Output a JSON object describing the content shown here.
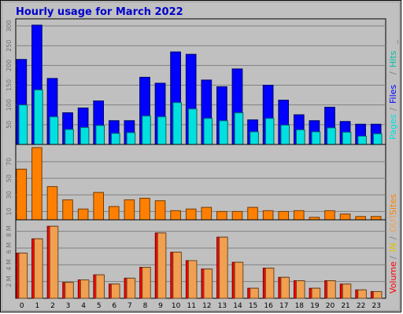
{
  "title": "Hourly usage for March 2022",
  "colors": {
    "background": "#ffffff",
    "plot_bg": "#c0c0c0",
    "grid": "#808080",
    "title": "#0000cc",
    "pages": "#00e0e0",
    "files": "#0000ff",
    "hits": "#00c0a0",
    "sites": "#ff8000",
    "volume": "#ff0000",
    "kbin": "#f0a050",
    "kbout": "#e0c000"
  },
  "chart_data": [
    {
      "type": "bar",
      "panel": "top",
      "categories": [
        "0",
        "1",
        "2",
        "3",
        "4",
        "5",
        "6",
        "7",
        "8",
        "9",
        "10",
        "11",
        "12",
        "13",
        "14",
        "15",
        "16",
        "17",
        "18",
        "19",
        "20",
        "21",
        "22",
        "23"
      ],
      "ylim": [
        0,
        310
      ],
      "yticks": [
        "50",
        "100",
        "150",
        "200",
        "250",
        "300"
      ],
      "grid": true,
      "legend": {
        "placement": "right-vertical",
        "items": [
          {
            "name": "Pages",
            "color_key": "pages"
          },
          {
            "name": "/",
            "color_key": "grid"
          },
          {
            "name": "Files",
            "color_key": "files"
          },
          {
            "name": "/",
            "color_key": "grid"
          },
          {
            "name": "Hits",
            "color_key": "hits"
          },
          {
            "name": "_",
            "color_key": "grid"
          }
        ]
      },
      "series": [
        {
          "name": "Hits",
          "color_key": "hits",
          "values": [
            215,
            302,
            167,
            80,
            92,
            110,
            60,
            60,
            170,
            155,
            234,
            228,
            163,
            146,
            191,
            62,
            150,
            112,
            75,
            60,
            94,
            58,
            51,
            51
          ]
        },
        {
          "name": "Files",
          "color_key": "files",
          "values": [
            215,
            302,
            167,
            80,
            92,
            110,
            60,
            60,
            170,
            155,
            234,
            228,
            163,
            146,
            191,
            62,
            150,
            112,
            75,
            60,
            94,
            58,
            51,
            51
          ]
        },
        {
          "name": "Pages",
          "color_key": "pages",
          "values": [
            100,
            138,
            70,
            38,
            43,
            48,
            28,
            30,
            72,
            70,
            106,
            90,
            66,
            60,
            80,
            32,
            66,
            49,
            37,
            32,
            42,
            31,
            21,
            27
          ]
        }
      ]
    },
    {
      "type": "bar",
      "panel": "middle",
      "categories": [
        "0",
        "1",
        "2",
        "3",
        "4",
        "5",
        "6",
        "7",
        "8",
        "9",
        "10",
        "11",
        "12",
        "13",
        "14",
        "15",
        "16",
        "17",
        "18",
        "19",
        "20",
        "21",
        "22",
        "23"
      ],
      "ylim": [
        0,
        87
      ],
      "yticks": [
        "10",
        "30",
        "50",
        "70"
      ],
      "grid": true,
      "legend": {
        "placement": "right-vertical",
        "items": [
          {
            "name": "Sites",
            "color_key": "sites"
          }
        ]
      },
      "series": [
        {
          "name": "Sites",
          "color_key": "sites",
          "values": [
            61,
            87,
            40,
            24,
            13,
            33,
            16,
            24,
            26,
            23,
            11,
            13,
            15,
            10,
            10,
            15,
            11,
            10,
            11,
            3,
            11,
            7,
            4,
            4
          ]
        }
      ]
    },
    {
      "type": "bar",
      "panel": "bottom",
      "categories": [
        "0",
        "1",
        "2",
        "3",
        "4",
        "5",
        "6",
        "7",
        "8",
        "9",
        "10",
        "11",
        "12",
        "13",
        "14",
        "15",
        "16",
        "17",
        "18",
        "19",
        "20",
        "21",
        "22",
        "23"
      ],
      "ylim": [
        0,
        9
      ],
      "yticks": [
        "2 M",
        "4 M",
        "6 M",
        "8 M"
      ],
      "grid": true,
      "legend": {
        "placement": "right-vertical",
        "items": [
          {
            "name": "Volume",
            "color_key": "volume"
          },
          {
            "name": "/",
            "color_key": "grid"
          },
          {
            "name": "IN",
            "color_key": "kbout"
          },
          {
            "name": "/",
            "color_key": "grid"
          },
          {
            "name": "OUT",
            "color_key": "kbin"
          }
        ]
      },
      "series": [
        {
          "name": "Volume",
          "color_key": "volume",
          "values": [
            5.4,
            7.1,
            8.6,
            1.9,
            2.2,
            2.8,
            1.7,
            2.4,
            3.7,
            7.8,
            5.5,
            4.5,
            3.5,
            7.3,
            4.3,
            1.2,
            3.6,
            2.5,
            2.1,
            1.2,
            2.1,
            1.7,
            1.0,
            0.8
          ]
        },
        {
          "name": "OUT",
          "color_key": "kbin",
          "values": [
            5.4,
            7.1,
            8.6,
            1.9,
            2.2,
            2.8,
            1.7,
            2.4,
            3.7,
            7.8,
            5.5,
            4.5,
            3.5,
            7.3,
            4.3,
            1.2,
            3.6,
            2.5,
            2.1,
            1.2,
            2.1,
            1.7,
            1.0,
            0.8
          ]
        }
      ]
    }
  ]
}
